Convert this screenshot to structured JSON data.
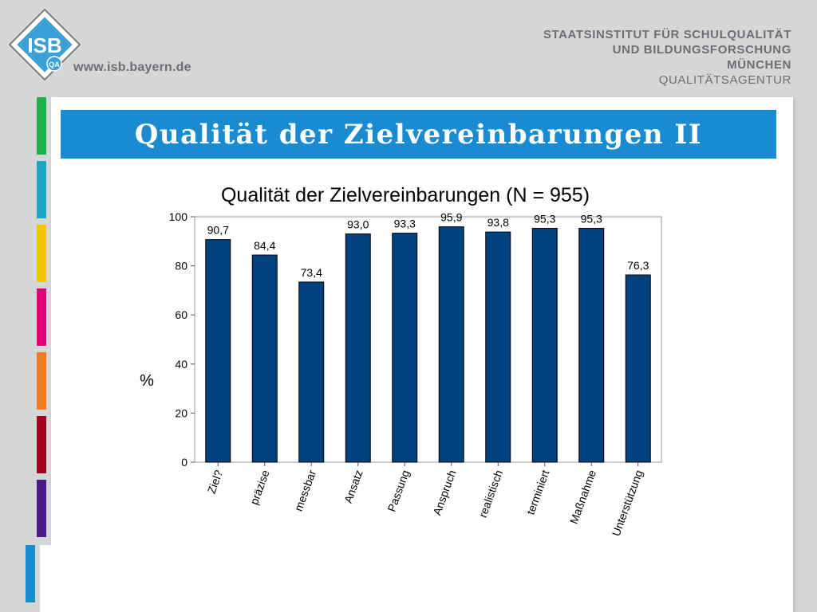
{
  "header": {
    "logo_text": "ISB",
    "logo_badge": "QA",
    "site_url": "www.isb.bayern.de",
    "institute_lines": [
      "STAATSINSTITUT FÜR SCHULQUALITÄT",
      "UND BILDUNGSFORSCHUNG",
      "MÜNCHEN"
    ],
    "agency": "QUALITÄTSAGENTUR"
  },
  "slide": {
    "title": "Qualität der Zielvereinbarungen II"
  },
  "stripe_colors": [
    "#1fb24a",
    "#1aa6c4",
    "#f2c500",
    "#e2007a",
    "#f07c22",
    "#a3001f",
    "#4b1b8c"
  ],
  "bottom_stripe_color": "#1a8bd1",
  "chart_data": {
    "type": "bar",
    "title": "Qualität der Zielvereinbarungen (N = 955)",
    "xlabel": "",
    "ylabel": "%",
    "ylim": [
      0,
      100
    ],
    "yticks": [
      0,
      20,
      40,
      60,
      80,
      100
    ],
    "categories": [
      "Ziel?",
      "präzise",
      "messbar",
      "Ansatz",
      "Passung",
      "Anspruch",
      "realistisch",
      "terminiert",
      "Maßnahme",
      "Unterstützung"
    ],
    "values": [
      90.7,
      84.4,
      73.4,
      93.0,
      93.3,
      95.9,
      93.8,
      95.3,
      95.3,
      76.3
    ],
    "value_labels": [
      "90,7",
      "84,4",
      "73,4",
      "93,0",
      "93,3",
      "95,9",
      "93,8",
      "95,3",
      "95,3",
      "76,3"
    ],
    "bar_color": "#00427f",
    "grid": false,
    "legend": "none"
  }
}
